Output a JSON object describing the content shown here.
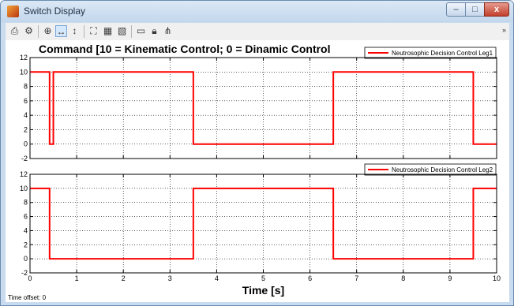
{
  "window": {
    "title": "Switch Display",
    "buttons": {
      "minimize": "–",
      "maximize": "□",
      "close": "x"
    }
  },
  "toolbar": {
    "icons": [
      "printer-icon",
      "gear-icon",
      "zoom-icon",
      "zoom-x-icon",
      "zoom-y-icon",
      "autoscale-icon",
      "save-axes-icon",
      "restore-axes-icon",
      "floating-scope-icon",
      "lock-icon",
      "signal-selector-icon"
    ],
    "more": "»"
  },
  "footer": {
    "time_offset_label": "Time offset:",
    "time_offset_value": "0"
  },
  "colors": {
    "signal": "#ff0000",
    "axes_bg": "#ffffff",
    "grid": "#000000"
  },
  "chart_data": [
    {
      "type": "line",
      "title": "Command [10 = Kinematic Control; 0 = Dinamic Control",
      "xlabel": "",
      "ylabel": "",
      "xlim": [
        0,
        10
      ],
      "ylim": [
        -2,
        12
      ],
      "xticks": [
        "",
        "",
        "",
        "",
        "",
        "",
        "",
        "",
        "",
        "",
        ""
      ],
      "yticks": [
        "-2",
        "0",
        "2",
        "4",
        "6",
        "8",
        "10",
        "12"
      ],
      "grid": true,
      "legend_position": "top-right",
      "series": [
        {
          "name": "Neutrosophic Decision Control Leg1",
          "color": "#ff0000",
          "x": [
            0,
            0.42,
            0.42,
            0.5,
            0.5,
            3.5,
            3.5,
            6.5,
            6.5,
            9.5,
            9.5,
            10
          ],
          "y": [
            10,
            10,
            0,
            0,
            10,
            10,
            0,
            0,
            10,
            10,
            0,
            0
          ]
        }
      ]
    },
    {
      "type": "line",
      "title": "",
      "xlabel": "Time [s]",
      "ylabel": "",
      "xlim": [
        0,
        10
      ],
      "ylim": [
        -2,
        12
      ],
      "xticks": [
        "0",
        "1",
        "2",
        "3",
        "4",
        "5",
        "6",
        "7",
        "8",
        "9",
        "10"
      ],
      "yticks": [
        "-2",
        "0",
        "2",
        "4",
        "6",
        "8",
        "10",
        "12"
      ],
      "grid": true,
      "legend_position": "top-right",
      "series": [
        {
          "name": "Neutrosophic Decision Control Leg2",
          "color": "#ff0000",
          "x": [
            0,
            0.42,
            0.42,
            3.5,
            3.5,
            6.5,
            6.5,
            9.5,
            9.5,
            10
          ],
          "y": [
            10,
            10,
            0,
            0,
            10,
            10,
            0,
            0,
            10,
            10
          ]
        }
      ]
    }
  ]
}
